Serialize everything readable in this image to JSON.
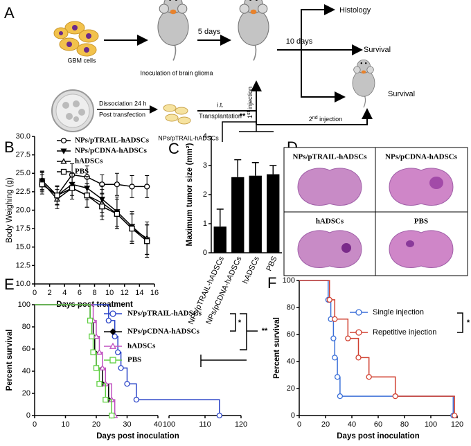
{
  "panelA": {
    "letter": "A",
    "gbm": "GBM cells",
    "inoculation": "Inoculation of brain glioma",
    "five_days": "5 days",
    "ten_days": "10 days",
    "histology": "Histology",
    "survival_1": "Survival",
    "survival_2": "Survival",
    "dissociation": "Dissociation 24 h",
    "post_transfection": "Post transfection",
    "it": "i.t.",
    "transplantation": "Transplantation",
    "cells_label": "NPs/pTRAIL-hADSCs",
    "first_injection": [
      "1",
      "st",
      " injection"
    ],
    "second_injection": [
      "2",
      "nd",
      " injection"
    ]
  },
  "panelD": {
    "letter": "D",
    "labels": [
      "NPs/pTRAIL-hADSCs",
      "NPs/pCDNA-hADSCs",
      "hADSCs",
      "PBS"
    ]
  },
  "chart_data": [
    {
      "type": "line",
      "panel": "B",
      "xlabel": "Days post treatment",
      "ylabel": "Body Weighing (g)",
      "xlim": [
        0,
        16
      ],
      "xticks": [
        0,
        2,
        4,
        6,
        8,
        10,
        12,
        14,
        16
      ],
      "ylim": [
        10,
        30
      ],
      "yticks": [
        {
          "value": 10,
          "label": "10.0"
        },
        {
          "value": 12.5,
          "label": "12.5"
        },
        {
          "value": 15,
          "label": "15.0"
        },
        {
          "value": 17.5,
          "label": "17.5"
        },
        {
          "value": 20,
          "label": "20.0"
        },
        {
          "value": 22.5,
          "label": "22.5"
        },
        {
          "value": 25,
          "label": "25.0"
        },
        {
          "value": 27.5,
          "label": "27.5"
        },
        {
          "value": 30,
          "label": "30.0"
        }
      ],
      "x": [
        1,
        3,
        5,
        7,
        9,
        11,
        13,
        15
      ],
      "series": [
        {
          "name": "NPs/pTRAIL-hADSCs",
          "marker": "circle",
          "color": "#000",
          "values": [
            24,
            22,
            24.8,
            24.5,
            23.5,
            23.5,
            23.2,
            23.2
          ],
          "errors": [
            1.2,
            1.2,
            1.5,
            1.5,
            1.3,
            1.5,
            1.5,
            1.5
          ]
        },
        {
          "name": "NPs/pCDNA-hADSCs",
          "marker": "triangle-down-filled",
          "color": "#000",
          "values": [
            24,
            22,
            23.5,
            23,
            21.5,
            19.8,
            17.8,
            16
          ],
          "errors": [
            1.3,
            1.3,
            1.5,
            1.6,
            1.8,
            2.0,
            2.0,
            2.0
          ]
        },
        {
          "name": "hADSCs",
          "marker": "triangle-up",
          "color": "#000",
          "values": [
            23.8,
            21.5,
            23,
            22,
            21,
            19.5,
            17.5,
            16.2
          ],
          "errors": [
            1.3,
            1.3,
            1.5,
            1.6,
            1.8,
            2.0,
            2.0,
            2.2
          ]
        },
        {
          "name": "PBS",
          "marker": "square",
          "color": "#000",
          "values": [
            23.5,
            22,
            23,
            22,
            20.5,
            19.5,
            17.5,
            15.8
          ],
          "errors": [
            1.3,
            1.3,
            1.5,
            1.6,
            1.8,
            2.0,
            2.0,
            2.2
          ]
        }
      ]
    },
    {
      "type": "bar",
      "panel": "C",
      "ylabel": "Maximum tumor size (mm²)",
      "annotation": "**",
      "categories": [
        "NPs/pTRAIL-hADSCs",
        "NPs/pCDNA-hADSCs",
        "hADSCs",
        "PBS"
      ],
      "values": [
        0.9,
        2.6,
        2.65,
        2.7
      ],
      "errors": [
        0.6,
        0.6,
        0.45,
        0.3
      ],
      "color": "#000",
      "ylim": [
        0,
        4
      ],
      "yticks": [
        0,
        1,
        2,
        3,
        4
      ]
    },
    {
      "type": "survival",
      "panel": "E",
      "xlabel": "Days post inoculation",
      "ylabel": "Percent survival",
      "xlim": [
        0,
        120
      ],
      "xbreak": [
        40,
        100
      ],
      "xticks": [
        0,
        10,
        20,
        30,
        40,
        100,
        110,
        120
      ],
      "ylim": [
        0,
        100
      ],
      "yticks": [
        0,
        20,
        40,
        60,
        80,
        100
      ],
      "annotations": [
        "*",
        "**"
      ],
      "series": [
        {
          "name": "NPs/pTRAIL-hADSCs",
          "marker": "circle",
          "color": "#2a44c8",
          "x": [
            0,
            24,
            26,
            27,
            28,
            30,
            33,
            114
          ],
          "values": [
            100,
            85.7,
            71.4,
            57.1,
            42.9,
            28.6,
            14.3,
            0
          ]
        },
        {
          "name": "NPs/pCDNA-hADSCs",
          "marker": "diamond-filled",
          "color": "#000",
          "x": [
            0,
            18,
            19,
            19.5,
            20,
            22,
            24,
            25
          ],
          "values": [
            100,
            85.7,
            71.4,
            57.1,
            42.9,
            28.6,
            14.3,
            0
          ]
        },
        {
          "name": "hADSCs",
          "marker": "triangle-up",
          "color": "#c050c0",
          "x": [
            0,
            19,
            20,
            21,
            22,
            23,
            25,
            26
          ],
          "values": [
            100,
            85.7,
            71.4,
            57.1,
            42.9,
            28.6,
            14.3,
            0
          ]
        },
        {
          "name": "PBS",
          "marker": "square",
          "color": "#5ed040",
          "x": [
            0,
            18,
            18.5,
            19,
            20,
            21,
            23,
            25
          ],
          "values": [
            100,
            85.7,
            71.4,
            57.1,
            42.9,
            28.6,
            14.3,
            0
          ]
        }
      ]
    },
    {
      "type": "survival",
      "panel": "F",
      "xlabel": "Days post inoculation",
      "ylabel": "Percent survival",
      "xlim": [
        0,
        120
      ],
      "xticks": [
        0,
        20,
        40,
        60,
        80,
        100,
        120
      ],
      "ylim": [
        0,
        100
      ],
      "yticks": [
        0,
        20,
        40,
        60,
        80,
        100
      ],
      "annotations": [
        "*"
      ],
      "series": [
        {
          "name": "Single injection",
          "marker": "circle",
          "color": "#3a6fd8",
          "x": [
            0,
            22,
            24,
            26,
            27,
            29,
            31,
            117
          ],
          "values": [
            100,
            85.7,
            71.4,
            57.1,
            42.9,
            28.6,
            14.3,
            0
          ]
        },
        {
          "name": "Repetitive injection",
          "marker": "circle",
          "color": "#d04030",
          "x": [
            0,
            23,
            27,
            37,
            45,
            53,
            73,
            118
          ],
          "values": [
            100,
            85.7,
            71.4,
            57.1,
            42.9,
            28.6,
            14.3,
            0
          ]
        }
      ]
    }
  ]
}
